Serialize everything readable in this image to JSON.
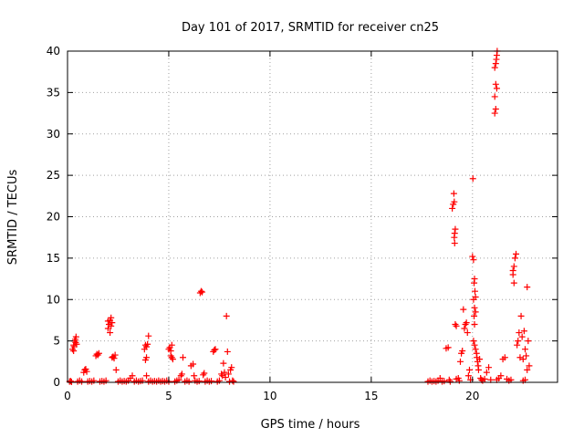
{
  "chart_data": {
    "type": "scatter",
    "title": "Day 101 of 2017, SRMTID for receiver cn25",
    "xlabel": "GPS time / hours",
    "ylabel": "SRMTID / TECUs",
    "xlim": [
      0,
      24.2
    ],
    "ylim": [
      0,
      40
    ],
    "xticks": [
      0,
      5,
      10,
      15,
      20
    ],
    "yticks": [
      0,
      5,
      10,
      15,
      20,
      25,
      30,
      35,
      40
    ],
    "grid": true,
    "marker": "+",
    "color": "#ff0000",
    "series": [
      {
        "name": "SRMTID",
        "points": [
          [
            0.1,
            0.1
          ],
          [
            0.15,
            0.15
          ],
          [
            0.2,
            0.05
          ],
          [
            0.25,
            4.0
          ],
          [
            0.3,
            4.5
          ],
          [
            0.32,
            4.3
          ],
          [
            0.35,
            5.0
          ],
          [
            0.38,
            5.2
          ],
          [
            0.4,
            4.8
          ],
          [
            0.42,
            5.5
          ],
          [
            0.45,
            4.6
          ],
          [
            0.3,
            3.8
          ],
          [
            0.5,
            0.1
          ],
          [
            0.6,
            0.2
          ],
          [
            0.7,
            0.1
          ],
          [
            0.8,
            1.2
          ],
          [
            0.85,
            1.5
          ],
          [
            0.9,
            1.6
          ],
          [
            0.95,
            1.3
          ],
          [
            1.0,
            0.1
          ],
          [
            1.1,
            0.15
          ],
          [
            1.2,
            0.1
          ],
          [
            1.3,
            0.2
          ],
          [
            1.4,
            3.2
          ],
          [
            1.45,
            3.4
          ],
          [
            1.5,
            3.3
          ],
          [
            1.55,
            3.5
          ],
          [
            1.6,
            0.1
          ],
          [
            1.7,
            0.15
          ],
          [
            1.8,
            0.1
          ],
          [
            1.9,
            0.2
          ],
          [
            2.0,
            6.5
          ],
          [
            2.05,
            7.0
          ],
          [
            2.1,
            7.5
          ],
          [
            2.15,
            7.8
          ],
          [
            2.2,
            7.2
          ],
          [
            2.1,
            6.0
          ],
          [
            2.15,
            6.8
          ],
          [
            2.0,
            7.4
          ],
          [
            2.2,
            3.0
          ],
          [
            2.25,
            3.1
          ],
          [
            2.3,
            2.9
          ],
          [
            2.35,
            3.3
          ],
          [
            2.4,
            1.5
          ],
          [
            2.5,
            0.1
          ],
          [
            2.6,
            0.2
          ],
          [
            2.7,
            0.1
          ],
          [
            2.8,
            0.15
          ],
          [
            2.9,
            0.1
          ],
          [
            3.0,
            0.2
          ],
          [
            3.1,
            0.5
          ],
          [
            3.2,
            0.8
          ],
          [
            3.3,
            0.1
          ],
          [
            3.4,
            0.2
          ],
          [
            3.5,
            0.1
          ],
          [
            3.6,
            0.15
          ],
          [
            3.7,
            0.2
          ],
          [
            3.8,
            4.0
          ],
          [
            3.85,
            4.5
          ],
          [
            3.9,
            4.3
          ],
          [
            3.95,
            4.6
          ],
          [
            4.0,
            5.6
          ],
          [
            3.9,
            3.0
          ],
          [
            3.85,
            2.7
          ],
          [
            3.9,
            0.8
          ],
          [
            4.0,
            0.1
          ],
          [
            4.1,
            0.2
          ],
          [
            4.2,
            0.1
          ],
          [
            4.3,
            0.15
          ],
          [
            4.4,
            0.1
          ],
          [
            4.5,
            0.2
          ],
          [
            4.6,
            0.1
          ],
          [
            4.7,
            0.15
          ],
          [
            4.8,
            0.1
          ],
          [
            4.9,
            0.2
          ],
          [
            5.0,
            4.0
          ],
          [
            5.05,
            4.2
          ],
          [
            5.1,
            3.8
          ],
          [
            5.15,
            4.5
          ],
          [
            5.1,
            3.2
          ],
          [
            5.15,
            3.0
          ],
          [
            5.2,
            2.8
          ],
          [
            5.0,
            0.1
          ],
          [
            5.3,
            0.1
          ],
          [
            5.4,
            0.2
          ],
          [
            5.5,
            0.3
          ],
          [
            5.6,
            0.8
          ],
          [
            5.65,
            1.0
          ],
          [
            5.7,
            3.0
          ],
          [
            5.8,
            0.1
          ],
          [
            5.9,
            0.2
          ],
          [
            6.0,
            0.1
          ],
          [
            6.1,
            2.0
          ],
          [
            6.2,
            2.2
          ],
          [
            6.25,
            0.8
          ],
          [
            6.3,
            0.2
          ],
          [
            6.4,
            0.1
          ],
          [
            6.5,
            0.15
          ],
          [
            6.55,
            10.8
          ],
          [
            6.6,
            11.0
          ],
          [
            6.65,
            10.9
          ],
          [
            6.7,
            0.9
          ],
          [
            6.75,
            1.1
          ],
          [
            6.8,
            0.1
          ],
          [
            6.9,
            0.2
          ],
          [
            7.0,
            0.1
          ],
          [
            7.1,
            0.15
          ],
          [
            7.2,
            3.7
          ],
          [
            7.25,
            3.9
          ],
          [
            7.3,
            4.0
          ],
          [
            7.4,
            0.1
          ],
          [
            7.5,
            0.2
          ],
          [
            7.6,
            1.0
          ],
          [
            7.65,
            0.8
          ],
          [
            7.7,
            2.3
          ],
          [
            7.75,
            1.2
          ],
          [
            7.8,
            0.6
          ],
          [
            7.85,
            8.0
          ],
          [
            7.9,
            3.7
          ],
          [
            7.95,
            1.0
          ],
          [
            8.0,
            0.1
          ],
          [
            8.05,
            1.5
          ],
          [
            8.1,
            1.8
          ],
          [
            8.15,
            0.2
          ],
          [
            8.2,
            0.1
          ],
          [
            17.8,
            0.1
          ],
          [
            17.9,
            0.2
          ],
          [
            18.0,
            0.1
          ],
          [
            18.1,
            0.15
          ],
          [
            18.2,
            0.1
          ],
          [
            18.3,
            0.2
          ],
          [
            18.4,
            0.5
          ],
          [
            18.5,
            0.1
          ],
          [
            18.6,
            0.15
          ],
          [
            18.7,
            4.1
          ],
          [
            18.8,
            4.2
          ],
          [
            18.85,
            0.3
          ],
          [
            18.9,
            0.1
          ],
          [
            19.0,
            21.0
          ],
          [
            19.05,
            21.5
          ],
          [
            19.08,
            22.8
          ],
          [
            19.1,
            21.8
          ],
          [
            19.12,
            18.0
          ],
          [
            19.15,
            18.5
          ],
          [
            19.1,
            17.5
          ],
          [
            19.12,
            16.8
          ],
          [
            19.15,
            7.0
          ],
          [
            19.2,
            6.8
          ],
          [
            19.2,
            0.4
          ],
          [
            19.3,
            0.5
          ],
          [
            19.35,
            0.2
          ],
          [
            19.4,
            2.5
          ],
          [
            19.45,
            3.5
          ],
          [
            19.5,
            3.8
          ],
          [
            19.55,
            8.8
          ],
          [
            19.6,
            6.5
          ],
          [
            19.65,
            7.0
          ],
          [
            19.7,
            7.2
          ],
          [
            19.75,
            6.0
          ],
          [
            19.8,
            0.8
          ],
          [
            19.85,
            1.5
          ],
          [
            19.9,
            0.3
          ],
          [
            20.0,
            15.2
          ],
          [
            20.05,
            14.8
          ],
          [
            20.02,
            24.6
          ],
          [
            20.08,
            12.0
          ],
          [
            20.1,
            12.5
          ],
          [
            20.12,
            11.0
          ],
          [
            20.15,
            10.3
          ],
          [
            20.05,
            10.0
          ],
          [
            20.1,
            9.0
          ],
          [
            20.15,
            8.5
          ],
          [
            20.08,
            8.0
          ],
          [
            20.1,
            7.0
          ],
          [
            20.05,
            5.0
          ],
          [
            20.1,
            4.5
          ],
          [
            20.15,
            4.0
          ],
          [
            20.2,
            3.5
          ],
          [
            20.22,
            3.0
          ],
          [
            20.25,
            2.5
          ],
          [
            20.28,
            2.0
          ],
          [
            20.3,
            1.5
          ],
          [
            20.35,
            2.8
          ],
          [
            20.4,
            0.5
          ],
          [
            20.45,
            0.3
          ],
          [
            20.5,
            0.2
          ],
          [
            20.6,
            0.4
          ],
          [
            20.7,
            1.2
          ],
          [
            20.8,
            1.8
          ],
          [
            20.9,
            0.3
          ],
          [
            21.1,
            38.0
          ],
          [
            21.15,
            38.5
          ],
          [
            21.18,
            39.0
          ],
          [
            21.2,
            39.5
          ],
          [
            21.22,
            40.0
          ],
          [
            21.15,
            36.0
          ],
          [
            21.2,
            35.5
          ],
          [
            21.1,
            34.5
          ],
          [
            21.15,
            33.0
          ],
          [
            21.1,
            32.5
          ],
          [
            21.2,
            0.3
          ],
          [
            21.3,
            0.5
          ],
          [
            21.4,
            0.8
          ],
          [
            21.5,
            2.8
          ],
          [
            21.6,
            3.0
          ],
          [
            21.7,
            0.4
          ],
          [
            21.8,
            0.2
          ],
          [
            21.9,
            0.3
          ],
          [
            22.0,
            13.5
          ],
          [
            22.05,
            14.0
          ],
          [
            22.1,
            15.0
          ],
          [
            22.15,
            15.5
          ],
          [
            22.0,
            13.0
          ],
          [
            22.05,
            12.0
          ],
          [
            22.2,
            4.5
          ],
          [
            22.25,
            5.0
          ],
          [
            22.3,
            6.0
          ],
          [
            22.35,
            3.0
          ],
          [
            22.4,
            8.0
          ],
          [
            22.45,
            5.5
          ],
          [
            22.5,
            2.8
          ],
          [
            22.55,
            6.2
          ],
          [
            22.6,
            4.0
          ],
          [
            22.65,
            3.2
          ],
          [
            22.7,
            11.5
          ],
          [
            22.75,
            5.0
          ],
          [
            22.8,
            2.0
          ],
          [
            22.7,
            1.5
          ],
          [
            22.6,
            0.3
          ],
          [
            22.5,
            0.2
          ]
        ]
      }
    ]
  }
}
